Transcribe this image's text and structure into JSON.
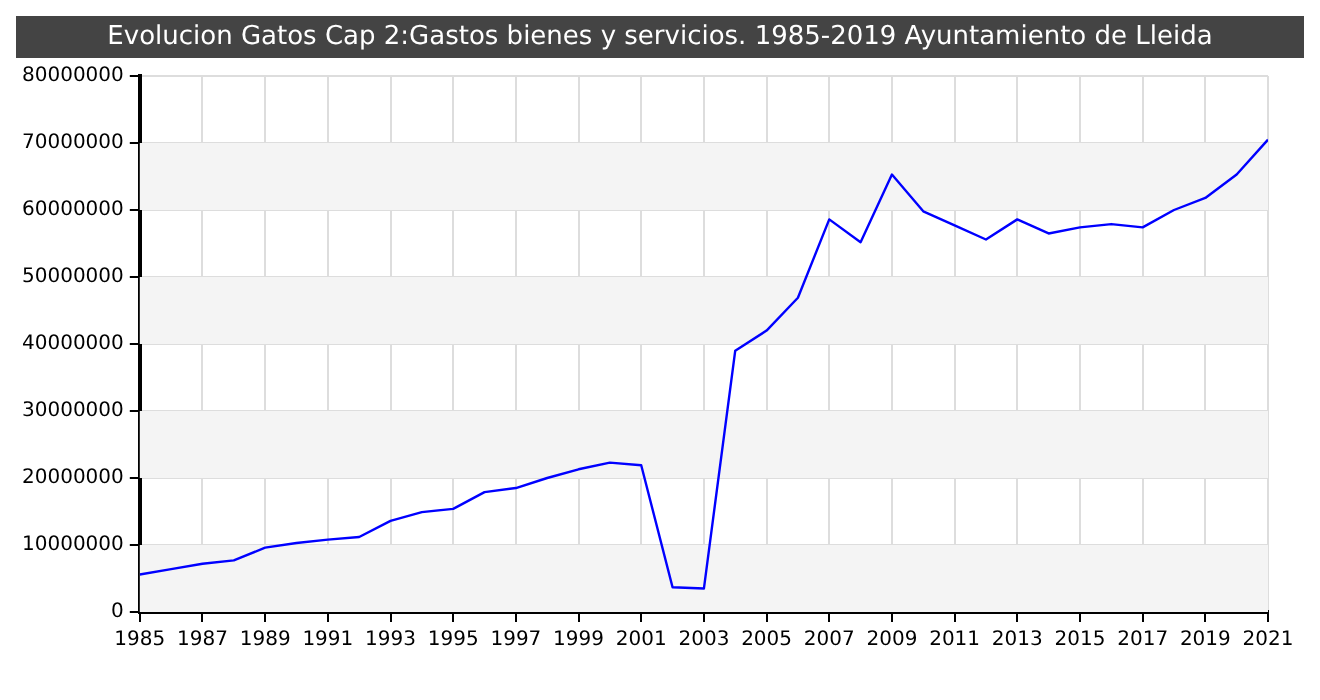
{
  "chart_data": {
    "type": "line",
    "title": "Evolucion Gatos Cap 2:Gastos bienes y servicios. 1985-2019 Ayuntamiento de Lleida",
    "x": [
      1985,
      1986,
      1987,
      1988,
      1989,
      1990,
      1991,
      1992,
      1993,
      1994,
      1995,
      1996,
      1997,
      1998,
      1999,
      2000,
      2001,
      2002,
      2003,
      2004,
      2005,
      2006,
      2007,
      2008,
      2009,
      2010,
      2011,
      2012,
      2013,
      2014,
      2015,
      2016,
      2017,
      2018,
      2019,
      2020,
      2021
    ],
    "series": [
      {
        "color": "#0000ff",
        "values": [
          5600000,
          6400000,
          7200000,
          7700000,
          9600000,
          10300000,
          10800000,
          11200000,
          13600000,
          14900000,
          15400000,
          17900000,
          18500000,
          20000000,
          21300000,
          22300000,
          21900000,
          3700000,
          3500000,
          39000000,
          42000000,
          46900000,
          58600000,
          55200000,
          65300000,
          59800000,
          57700000,
          55600000,
          58600000,
          56500000,
          57400000,
          57900000,
          57400000,
          60000000,
          61800000,
          65300000,
          70500000
        ]
      }
    ],
    "xlim": [
      1985,
      2021
    ],
    "xticks": [
      1985,
      1987,
      1989,
      1991,
      1993,
      1995,
      1997,
      1999,
      2001,
      2003,
      2005,
      2007,
      2009,
      2011,
      2013,
      2015,
      2017,
      2019,
      2021
    ],
    "ylim": [
      0,
      80000000
    ],
    "yticks": [
      0,
      10000000,
      20000000,
      30000000,
      40000000,
      50000000,
      60000000,
      70000000,
      80000000
    ],
    "grid": true,
    "legend": false,
    "marker": "none",
    "line_style": "solid"
  }
}
